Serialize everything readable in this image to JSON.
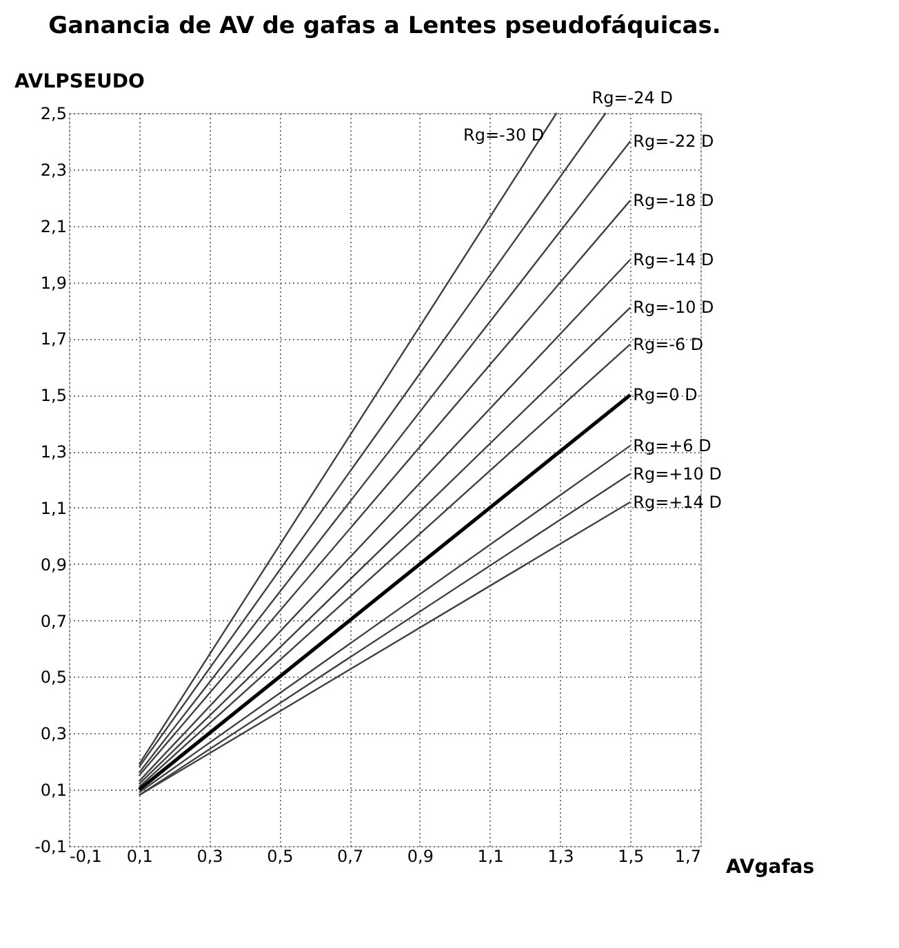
{
  "chart_data": {
    "type": "line",
    "title": "Ganancia de AV de gafas a Lentes pseudofáquicas.",
    "xlabel": "AVgafas",
    "ylabel": "AVLPSEUDO",
    "xlim": [
      -0.1,
      1.7
    ],
    "ylim": [
      -0.1,
      2.5
    ],
    "xticks": [
      {
        "value": -0.1,
        "label": "-0,1"
      },
      {
        "value": 0.1,
        "label": "0,1"
      },
      {
        "value": 0.3,
        "label": "0,3"
      },
      {
        "value": 0.5,
        "label": "0,5"
      },
      {
        "value": 0.7,
        "label": "0,7"
      },
      {
        "value": 0.9,
        "label": "0,9"
      },
      {
        "value": 1.1,
        "label": "1,1"
      },
      {
        "value": 1.3,
        "label": "1,3"
      },
      {
        "value": 1.5,
        "label": "1,5"
      },
      {
        "value": 1.7,
        "label": "1,7"
      }
    ],
    "yticks": [
      {
        "value": -0.1,
        "label": "-0,1"
      },
      {
        "value": 0.1,
        "label": "0,1"
      },
      {
        "value": 0.3,
        "label": "0,3"
      },
      {
        "value": 0.5,
        "label": "0,5"
      },
      {
        "value": 0.7,
        "label": "0,7"
      },
      {
        "value": 0.9,
        "label": "0,9"
      },
      {
        "value": 1.1,
        "label": "1,1"
      },
      {
        "value": 1.3,
        "label": "1,3"
      },
      {
        "value": 1.5,
        "label": "1,5"
      },
      {
        "value": 1.7,
        "label": "1,7"
      },
      {
        "value": 1.9,
        "label": "1,9"
      },
      {
        "value": 2.1,
        "label": "2,1"
      },
      {
        "value": 2.3,
        "label": "2,3"
      },
      {
        "value": 2.5,
        "label": "2,5"
      }
    ],
    "grid": true,
    "marker": "none",
    "line_style": "solid",
    "series": [
      {
        "name": "Rg=-30 D",
        "color": "#404040",
        "x": [
          0.1,
          1.29
        ],
        "values": [
          0.19,
          2.5
        ]
      },
      {
        "name": "Rg=-24 D",
        "color": "#404040",
        "x": [
          0.1,
          1.43
        ],
        "values": [
          0.18,
          2.5
        ]
      },
      {
        "name": "Rg=-22 D",
        "color": "#404040",
        "x": [
          0.1,
          1.5
        ],
        "values": [
          0.16,
          2.4
        ]
      },
      {
        "name": "Rg=-18 D",
        "color": "#404040",
        "x": [
          0.1,
          1.5
        ],
        "values": [
          0.15,
          2.19
        ]
      },
      {
        "name": "Rg=-14 D",
        "color": "#404040",
        "x": [
          0.1,
          1.5
        ],
        "values": [
          0.13,
          1.98
        ]
      },
      {
        "name": "Rg=-10 D",
        "color": "#404040",
        "x": [
          0.1,
          1.5
        ],
        "values": [
          0.12,
          1.81
        ]
      },
      {
        "name": "Rg=-6 D",
        "color": "#404040",
        "x": [
          0.1,
          1.5
        ],
        "values": [
          0.11,
          1.68
        ]
      },
      {
        "name": "Rg=0 D",
        "color": "#000000",
        "x": [
          0.1,
          1.5
        ],
        "values": [
          0.1,
          1.5
        ]
      },
      {
        "name": "Rg=+6 D",
        "color": "#404040",
        "x": [
          0.1,
          1.5
        ],
        "values": [
          0.09,
          1.32
        ]
      },
      {
        "name": "Rg=+10 D",
        "color": "#404040",
        "x": [
          0.1,
          1.5
        ],
        "values": [
          0.08,
          1.22
        ]
      },
      {
        "name": "Rg=+14 D",
        "color": "#404040",
        "x": [
          0.1,
          1.5
        ],
        "values": [
          0.08,
          1.12
        ]
      }
    ]
  }
}
